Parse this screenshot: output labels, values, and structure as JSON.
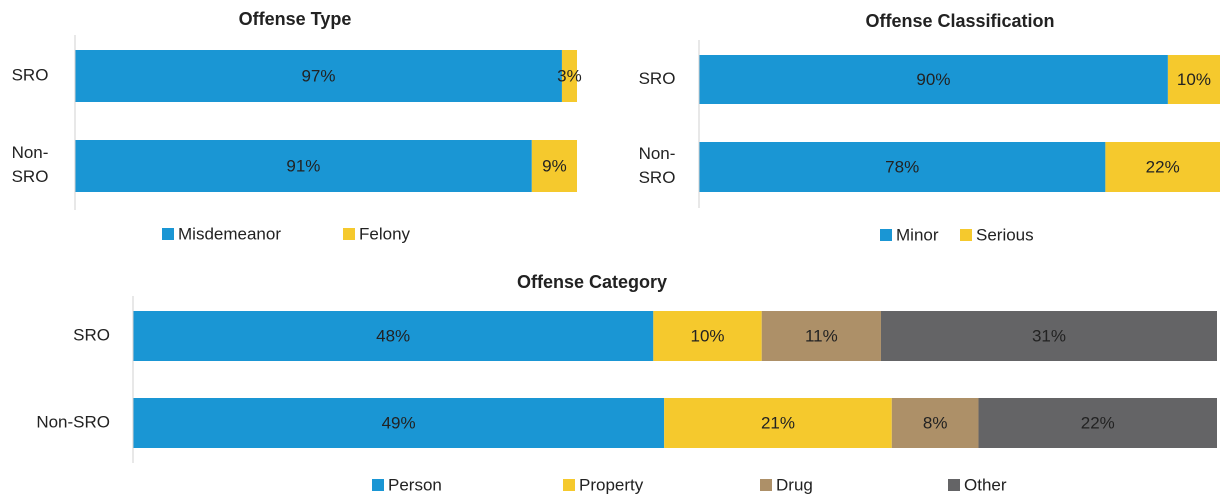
{
  "chart_data": [
    {
      "type": "bar",
      "stacked": true,
      "orientation": "horizontal",
      "title": "Offense Type",
      "categories": [
        "SRO",
        "Non-SRO"
      ],
      "xlim": [
        0,
        100
      ],
      "series": [
        {
          "name": "Misdemeanor",
          "color": "#1a96d4",
          "values": [
            97,
            91
          ],
          "value_labels": [
            "97%",
            "91%"
          ]
        },
        {
          "name": "Felony",
          "color": "#f5c92d",
          "values": [
            3,
            9
          ],
          "value_labels": [
            "3%",
            "9%"
          ]
        }
      ]
    },
    {
      "type": "bar",
      "stacked": true,
      "orientation": "horizontal",
      "title": "Offense Classification",
      "categories": [
        "SRO",
        "Non-SRO"
      ],
      "xlim": [
        0,
        100
      ],
      "series": [
        {
          "name": "Minor",
          "color": "#1a96d4",
          "values": [
            90,
            78
          ],
          "value_labels": [
            "90%",
            "78%"
          ]
        },
        {
          "name": "Serious",
          "color": "#f5c92d",
          "values": [
            10,
            22
          ],
          "value_labels": [
            "10%",
            "22%"
          ]
        }
      ]
    },
    {
      "type": "bar",
      "stacked": true,
      "orientation": "horizontal",
      "title": "Offense Category",
      "categories": [
        "SRO",
        "Non-SRO"
      ],
      "xlim": [
        0,
        100
      ],
      "series": [
        {
          "name": "Person",
          "color": "#1a96d4",
          "values": [
            48,
            49
          ],
          "value_labels": [
            "48%",
            "49%"
          ]
        },
        {
          "name": "Property",
          "color": "#f5c92d",
          "values": [
            10,
            21
          ],
          "value_labels": [
            "10%",
            "21%"
          ]
        },
        {
          "name": "Drug",
          "color": "#ad9068",
          "values": [
            11,
            8
          ],
          "value_labels": [
            "11%",
            "8%"
          ]
        },
        {
          "name": "Other",
          "color": "#646466",
          "values": [
            31,
            22
          ],
          "value_labels": [
            "31%",
            "22%"
          ]
        }
      ]
    }
  ]
}
